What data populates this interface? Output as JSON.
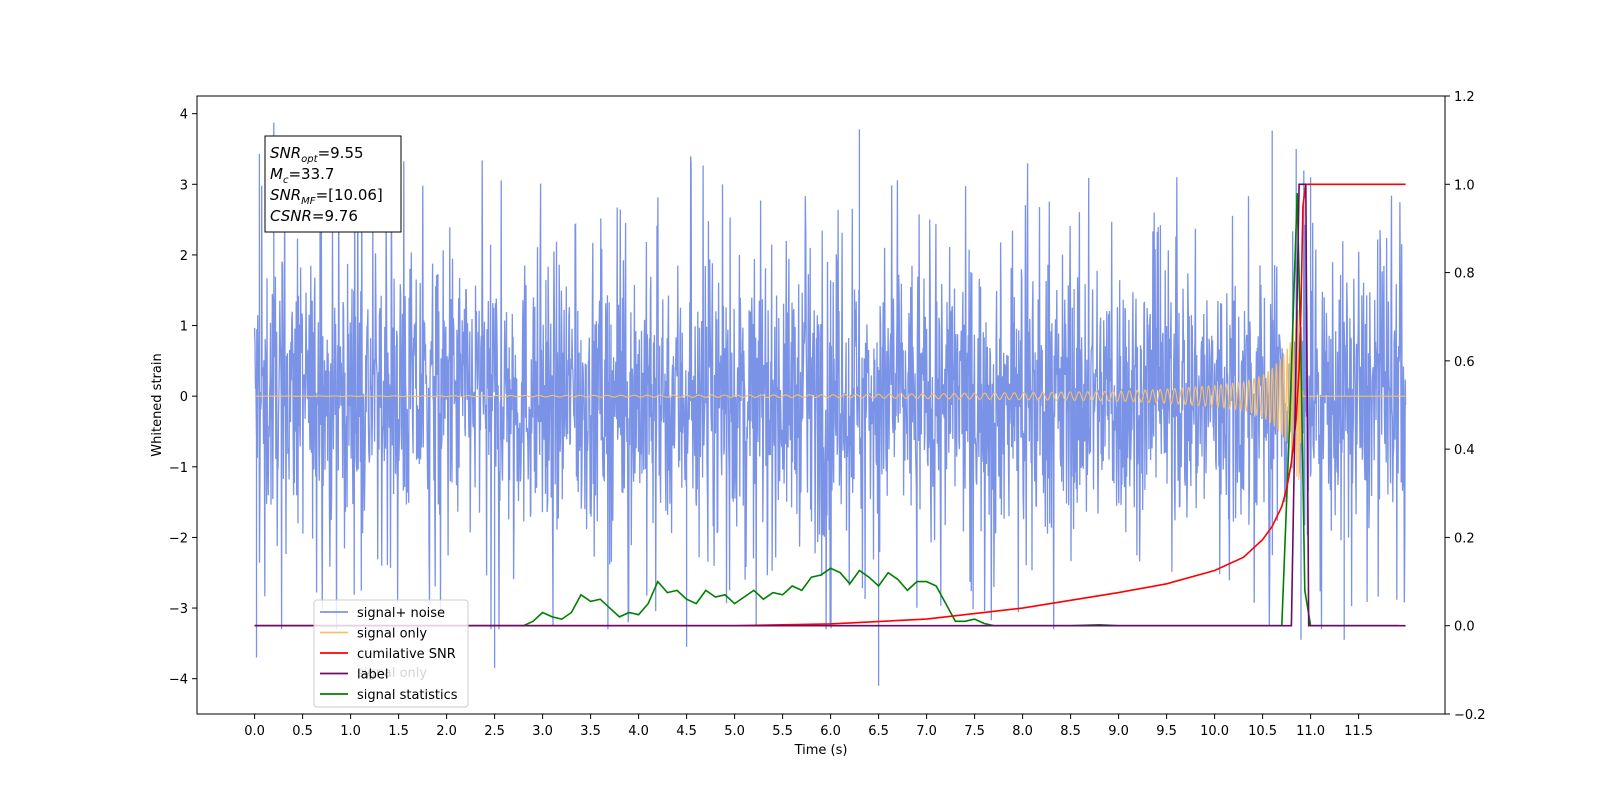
{
  "chart_data": {
    "type": "line",
    "title": "",
    "xlabel": "Time (s)",
    "ylabel": "Whitened strain",
    "y2label": "",
    "xlim": [
      -0.6,
      12.4
    ],
    "ylim": [
      -4.5,
      4.25
    ],
    "y2lim": [
      -0.2,
      1.2
    ],
    "xticks": [
      "0.0",
      "0.5",
      "1.0",
      "1.5",
      "2.0",
      "2.5",
      "3.0",
      "3.5",
      "4.0",
      "4.5",
      "5.0",
      "5.5",
      "6.0",
      "6.5",
      "7.0",
      "7.5",
      "8.0",
      "8.5",
      "9.0",
      "9.5",
      "10.0",
      "10.5",
      "11.0",
      "11.5"
    ],
    "yticks": [
      "4",
      "3",
      "2",
      "1",
      "0",
      "−1",
      "−2",
      "−3",
      "−4"
    ],
    "y2ticks": [
      "1.2",
      "1.0",
      "0.8",
      "0.6",
      "0.4",
      "0.2",
      "0.0",
      "−0.2"
    ],
    "grid": false,
    "legend_position": "lower-left",
    "annotation": {
      "lines": [
        {
          "sym": "SNR",
          "sub": "opt",
          "value": "=9.55"
        },
        {
          "sym": "M",
          "sub": "c",
          "value": "=33.7"
        },
        {
          "sym": "SNR",
          "sub": "MF",
          "value": "=[10.06]"
        },
        {
          "sym": "CSNR",
          "sub": "",
          "value": "=9.76"
        }
      ]
    },
    "legend": [
      {
        "label": "signal+ noise",
        "color": "#7b93e6"
      },
      {
        "label": "signal only",
        "color": "#f7bf6a"
      },
      {
        "label": "cumilative SNR",
        "color": "#ff0000"
      },
      {
        "label": "label",
        "color": "#6a0a6a"
      },
      {
        "label": "signal statistics",
        "color": "#008000"
      }
    ],
    "hidden_label": "signal only",
    "series": [
      {
        "name": "signal+ noise",
        "axis": "left",
        "color": "#7b93e6",
        "x_range": [
          0.0,
          11.99
        ],
        "noise_envelope": [
          -2.2,
          2.2
        ],
        "peaks_upper": [
          [
            0.2,
            3.87
          ],
          [
            0.05,
            3.43
          ],
          [
            6.3,
            3.78
          ],
          [
            10.6,
            3.76
          ],
          [
            10.85,
            3.5
          ],
          [
            11.0,
            3.1
          ]
        ],
        "peaks_lower": [
          [
            0.02,
            -3.7
          ],
          [
            4.5,
            -3.55
          ],
          [
            6.5,
            -4.1
          ],
          [
            2.5,
            -3.85
          ],
          [
            11.35,
            -3.45
          ],
          [
            10.9,
            -3.45
          ]
        ]
      },
      {
        "name": "signal only",
        "axis": "left",
        "color": "#f7bf6a",
        "x": [
          0.0,
          6.0,
          8.0,
          9.0,
          9.5,
          10.0,
          10.3,
          10.5,
          10.6,
          10.7,
          10.8,
          10.85,
          10.88,
          10.92,
          11.99
        ],
        "amplitude": [
          0.0,
          0.02,
          0.05,
          0.07,
          0.1,
          0.15,
          0.2,
          0.3,
          0.4,
          0.55,
          0.8,
          1.1,
          1.3,
          0.0,
          0.0
        ]
      },
      {
        "name": "cumilative SNR",
        "axis": "right",
        "color": "#ff0000",
        "x": [
          0.0,
          5.0,
          6.0,
          7.0,
          8.0,
          9.0,
          9.5,
          10.0,
          10.3,
          10.5,
          10.6,
          10.7,
          10.75,
          10.8,
          10.85,
          10.88,
          10.9,
          10.92,
          10.95,
          11.99
        ],
        "y": [
          0.0,
          0.0,
          0.004,
          0.015,
          0.04,
          0.075,
          0.095,
          0.125,
          0.155,
          0.195,
          0.225,
          0.27,
          0.31,
          0.37,
          0.47,
          0.58,
          0.72,
          0.95,
          1.0,
          1.0
        ]
      },
      {
        "name": "label",
        "axis": "right",
        "color": "#6a0a6a",
        "x": [
          0.0,
          10.8,
          10.88,
          10.95,
          10.98,
          11.99
        ],
        "y": [
          0.0,
          0.0,
          1.0,
          1.0,
          0.0,
          0.0
        ]
      },
      {
        "name": "signal statistics",
        "axis": "right",
        "color": "#008000",
        "x": [
          0.0,
          2.8,
          2.9,
          3.0,
          3.1,
          3.2,
          3.3,
          3.4,
          3.5,
          3.6,
          3.7,
          3.8,
          3.9,
          4.0,
          4.1,
          4.2,
          4.3,
          4.4,
          4.5,
          4.6,
          4.7,
          4.8,
          4.9,
          5.0,
          5.1,
          5.2,
          5.3,
          5.4,
          5.5,
          5.6,
          5.7,
          5.8,
          5.9,
          6.0,
          6.1,
          6.2,
          6.3,
          6.4,
          6.5,
          6.6,
          6.7,
          6.8,
          6.9,
          7.0,
          7.1,
          7.2,
          7.3,
          7.4,
          7.5,
          7.6,
          7.7,
          7.8,
          8.0,
          8.5,
          8.8,
          9.0,
          9.1,
          10.7,
          10.78,
          10.86,
          10.9,
          10.94,
          11.0,
          11.92
        ],
        "y": [
          0.0,
          0.0,
          0.01,
          0.03,
          0.02,
          0.015,
          0.03,
          0.07,
          0.055,
          0.06,
          0.04,
          0.02,
          0.03,
          0.025,
          0.05,
          0.1,
          0.075,
          0.08,
          0.06,
          0.05,
          0.08,
          0.065,
          0.07,
          0.05,
          0.065,
          0.08,
          0.06,
          0.075,
          0.07,
          0.09,
          0.08,
          0.11,
          0.115,
          0.13,
          0.12,
          0.095,
          0.125,
          0.11,
          0.09,
          0.12,
          0.105,
          0.08,
          0.1,
          0.1,
          0.09,
          0.05,
          0.01,
          0.01,
          0.015,
          0.005,
          0.0,
          0.0,
          0.0,
          0.0,
          0.002,
          0.0,
          0.0,
          0.0,
          0.45,
          0.98,
          0.6,
          0.08,
          0.0,
          0.0
        ]
      }
    ]
  }
}
